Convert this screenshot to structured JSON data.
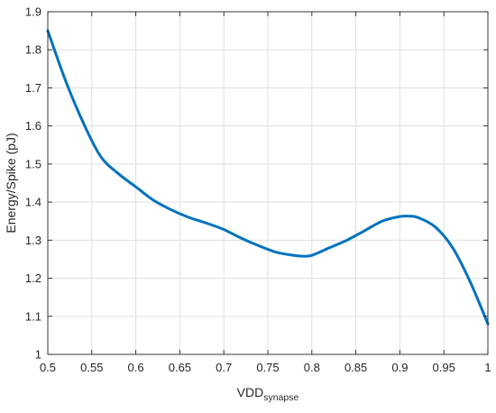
{
  "chart_data": {
    "type": "line",
    "title": "",
    "xlabel": "VDD",
    "xlabel_subscript": "synapse",
    "ylabel": "Energy/Spike (pJ)",
    "xlim": [
      0.5,
      1.0
    ],
    "ylim": [
      1.0,
      1.9
    ],
    "x_ticks": [
      "0.5",
      "0.55",
      "0.6",
      "0.65",
      "0.7",
      "0.75",
      "0.8",
      "0.85",
      "0.9",
      "0.95",
      "1"
    ],
    "y_ticks": [
      "1",
      "1.1",
      "1.2",
      "1.3",
      "1.4",
      "1.5",
      "1.6",
      "1.7",
      "1.8",
      "1.9"
    ],
    "grid": true,
    "legend": "none",
    "line_color": "#0072BD",
    "series": [
      {
        "x": [
          0.5,
          0.52,
          0.54,
          0.56,
          0.58,
          0.6,
          0.62,
          0.64,
          0.66,
          0.68,
          0.7,
          0.72,
          0.74,
          0.76,
          0.78,
          0.79,
          0.8,
          0.82,
          0.84,
          0.86,
          0.88,
          0.9,
          0.91,
          0.92,
          0.94,
          0.96,
          0.98,
          1.0
        ],
        "y": [
          1.85,
          1.72,
          1.61,
          1.52,
          1.475,
          1.44,
          1.405,
          1.38,
          1.36,
          1.345,
          1.328,
          1.305,
          1.285,
          1.268,
          1.26,
          1.258,
          1.26,
          1.28,
          1.3,
          1.325,
          1.35,
          1.362,
          1.363,
          1.36,
          1.335,
          1.28,
          1.19,
          1.08
        ]
      }
    ]
  }
}
